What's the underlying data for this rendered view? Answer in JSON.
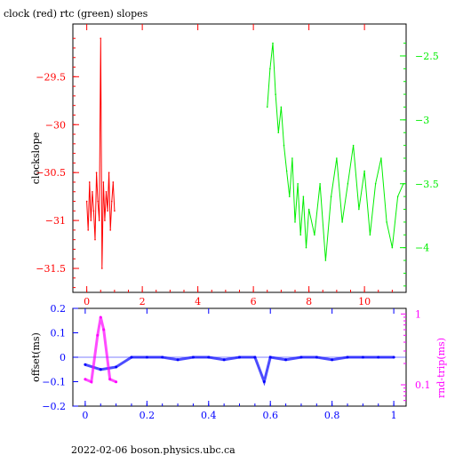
{
  "title": "clock (red) rtc (green) slopes",
  "footer": "2022-02-06  boson.physics.ubc.ca",
  "colors": {
    "red": "#ff0000",
    "green": "#00ee00",
    "blue": "#0000ff",
    "magenta": "#ff00ff",
    "axis": "#000000"
  },
  "chart_data": [
    {
      "type": "line",
      "title": "clock (red) rtc (green) slopes",
      "xlabel": "",
      "ylabel": "clockslope",
      "xlim": [
        -0.5,
        11.5
      ],
      "ylim": [
        -31.75,
        -28.95
      ],
      "y2lim": [
        -4.35,
        -2.25
      ],
      "x_ticks": [
        "0",
        "2",
        "4",
        "6",
        "8",
        "10"
      ],
      "y_ticks": [
        "-29.5",
        "-30",
        "-30.5",
        "-31",
        "-31.5"
      ],
      "y2_ticks": [
        "-2.5",
        "-3",
        "-3.5",
        "-4"
      ],
      "series": [
        {
          "name": "clock",
          "axis": "left",
          "color": "red",
          "x": [
            0.0,
            0.05,
            0.1,
            0.15,
            0.2,
            0.25,
            0.3,
            0.35,
            0.4,
            0.45,
            0.5,
            0.55,
            0.6,
            0.65,
            0.7,
            0.75,
            0.8,
            0.85,
            0.9,
            0.95,
            1.0
          ],
          "y": [
            -30.8,
            -31.1,
            -30.6,
            -31.0,
            -30.7,
            -30.9,
            -31.2,
            -30.5,
            -30.8,
            -31.0,
            -29.1,
            -31.5,
            -30.6,
            -31.0,
            -30.7,
            -30.9,
            -30.5,
            -31.1,
            -30.8,
            -30.6,
            -30.9
          ]
        },
        {
          "name": "rtc",
          "axis": "right",
          "color": "green",
          "x": [
            6.5,
            6.6,
            6.7,
            6.8,
            6.9,
            7.0,
            7.1,
            7.2,
            7.3,
            7.4,
            7.5,
            7.6,
            7.7,
            7.8,
            7.9,
            8.0,
            8.2,
            8.4,
            8.6,
            8.8,
            9.0,
            9.2,
            9.4,
            9.6,
            9.8,
            10.0,
            10.2,
            10.4,
            10.6,
            10.8,
            11.0,
            11.2,
            11.4
          ],
          "y": [
            -2.9,
            -2.6,
            -2.4,
            -2.8,
            -3.1,
            -2.9,
            -3.2,
            -3.4,
            -3.6,
            -3.3,
            -3.8,
            -3.5,
            -3.9,
            -3.6,
            -4.0,
            -3.7,
            -3.9,
            -3.5,
            -4.1,
            -3.6,
            -3.3,
            -3.8,
            -3.5,
            -3.2,
            -3.7,
            -3.4,
            -3.9,
            -3.5,
            -3.3,
            -3.8,
            -4.0,
            -3.6,
            -3.5
          ]
        }
      ]
    },
    {
      "type": "scatter",
      "xlabel": "",
      "ylabel": "offset(ms)",
      "y2label": "rnd-trip(ms)",
      "xlim": [
        -0.04,
        1.04
      ],
      "ylim": [
        -0.2,
        0.2
      ],
      "y2_log": true,
      "y2_range": [
        0.05,
        1.2
      ],
      "x_ticks": [
        "0",
        "0.2",
        "0.4",
        "0.6",
        "0.8",
        "1"
      ],
      "y_ticks": [
        "0.2",
        "0.1",
        "0",
        "-0.1",
        "-0.2"
      ],
      "y2_ticks": [
        "1",
        "0.1"
      ],
      "series": [
        {
          "name": "offset",
          "color": "blue",
          "x": [
            0.0,
            0.05,
            0.1,
            0.15,
            0.2,
            0.25,
            0.3,
            0.35,
            0.4,
            0.45,
            0.5,
            0.55,
            0.58,
            0.6,
            0.65,
            0.7,
            0.75,
            0.8,
            0.85,
            0.9,
            0.95,
            1.0
          ],
          "y": [
            -0.03,
            -0.05,
            -0.04,
            0.0,
            0.0,
            0.0,
            -0.01,
            0.0,
            0.0,
            -0.01,
            0.0,
            0.0,
            -0.1,
            0.0,
            -0.01,
            0.0,
            0.0,
            -0.01,
            0.0,
            0.0,
            0.0,
            0.0
          ]
        },
        {
          "name": "rnd-trip",
          "color": "magenta",
          "x": [
            0.0,
            0.02,
            0.04,
            0.05,
            0.06,
            0.08,
            0.1
          ],
          "y": [
            0.12,
            0.11,
            0.5,
            0.9,
            0.6,
            0.12,
            0.11
          ]
        }
      ]
    }
  ]
}
